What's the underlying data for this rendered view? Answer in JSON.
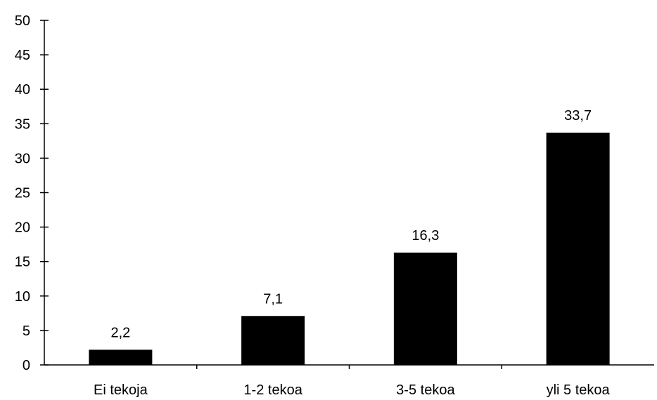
{
  "chart_data": {
    "type": "bar",
    "categories": [
      "Ei tekoja",
      "1-2 tekoa",
      "3-5 tekoa",
      "yli 5 tekoa"
    ],
    "values": [
      2.2,
      7.1,
      16.3,
      33.7
    ],
    "value_labels": [
      "2,2",
      "7,1",
      "16,3",
      "33,7"
    ],
    "ylim": [
      0,
      50
    ],
    "yticks": [
      0,
      5,
      10,
      15,
      20,
      25,
      30,
      35,
      40,
      45,
      50
    ],
    "grid": false,
    "legend": "none",
    "bar_color": "#000000"
  }
}
